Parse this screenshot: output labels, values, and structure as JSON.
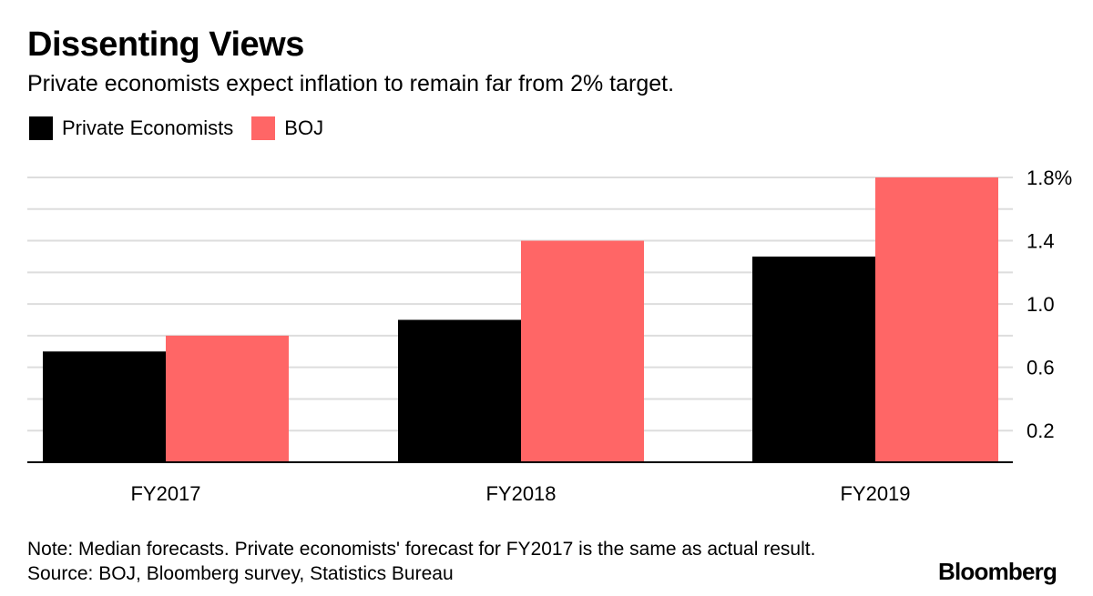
{
  "header": {
    "title": "Dissenting Views",
    "subtitle": "Private economists expect inflation to remain far from 2% target."
  },
  "colors": {
    "private_economists": "#000000",
    "boj": "#ff6666",
    "gridline": "#dddddd",
    "axis": "#000000"
  },
  "chart_data": {
    "type": "bar",
    "title": "Dissenting Views",
    "subtitle": "Private economists expect inflation to remain far from 2% target.",
    "categories": [
      "FY2017",
      "FY2018",
      "FY2019"
    ],
    "series": [
      {
        "name": "Private Economists",
        "values": [
          0.7,
          0.9,
          1.3
        ]
      },
      {
        "name": "BOJ",
        "values": [
          0.8,
          1.4,
          1.8
        ]
      }
    ],
    "xlabel": "",
    "ylabel": "",
    "ylim": [
      0,
      1.8
    ],
    "yticks": [
      0.2,
      0.6,
      1.0,
      1.4,
      1.8
    ],
    "ytick_labels": [
      "0.2",
      "0.6",
      "1.0",
      "1.4",
      "1.8%"
    ],
    "minor_gridlines": [
      0.4,
      0.8,
      1.2,
      1.6
    ],
    "legend_position": "top-left",
    "y_axis_side": "right",
    "grid": true
  },
  "footer": {
    "note": "Note: Median forecasts. Private economists' forecast for FY2017 is the same as actual result.",
    "source": "Source: BOJ, Bloomberg survey, Statistics Bureau"
  },
  "branding": {
    "logo_text": "Bloomberg"
  }
}
